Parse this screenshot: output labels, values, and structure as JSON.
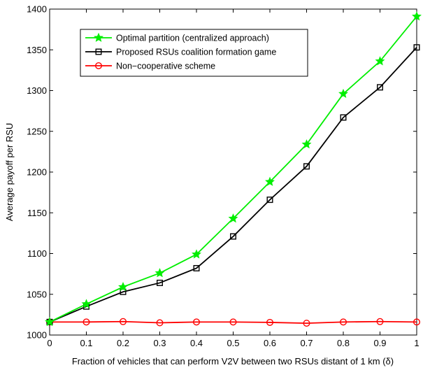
{
  "chart_data": {
    "type": "line",
    "xlabel": "Fraction of vehicles that can perform V2V between two RSUs distant of 1 km (δ)",
    "ylabel": "Average payoff per RSU",
    "xlim": [
      0,
      1
    ],
    "ylim": [
      1000,
      1400
    ],
    "x_ticks": [
      "0",
      "0.1",
      "0.2",
      "0.3",
      "0.4",
      "0.5",
      "0.6",
      "0.7",
      "0.8",
      "0.9",
      "1"
    ],
    "y_ticks": [
      "1000",
      "1050",
      "1100",
      "1150",
      "1200",
      "1250",
      "1300",
      "1350",
      "1400"
    ],
    "grid": false,
    "legend_position": "top-left",
    "x": [
      0,
      0.1,
      0.2,
      0.3,
      0.4,
      0.5,
      0.6,
      0.7,
      0.8,
      0.9,
      1
    ],
    "series": [
      {
        "name": "Optimal partition (centralized approach)",
        "color": "#00ee00",
        "marker": "star",
        "values": [
          1016,
          1038,
          1059,
          1076,
          1099,
          1143,
          1188,
          1234,
          1296,
          1336,
          1391
        ]
      },
      {
        "name": "Proposed RSUs coalition formation game",
        "color": "#000000",
        "marker": "square",
        "values": [
          1016,
          1035,
          1053,
          1064,
          1082,
          1121,
          1166,
          1207,
          1267,
          1304,
          1353
        ]
      },
      {
        "name": "Non−cooperative scheme",
        "color": "#ff0000",
        "marker": "circle",
        "values": [
          1016,
          1016,
          1016.5,
          1015,
          1016,
          1016,
          1015.5,
          1014.5,
          1016,
          1016.5,
          1016
        ]
      }
    ]
  }
}
